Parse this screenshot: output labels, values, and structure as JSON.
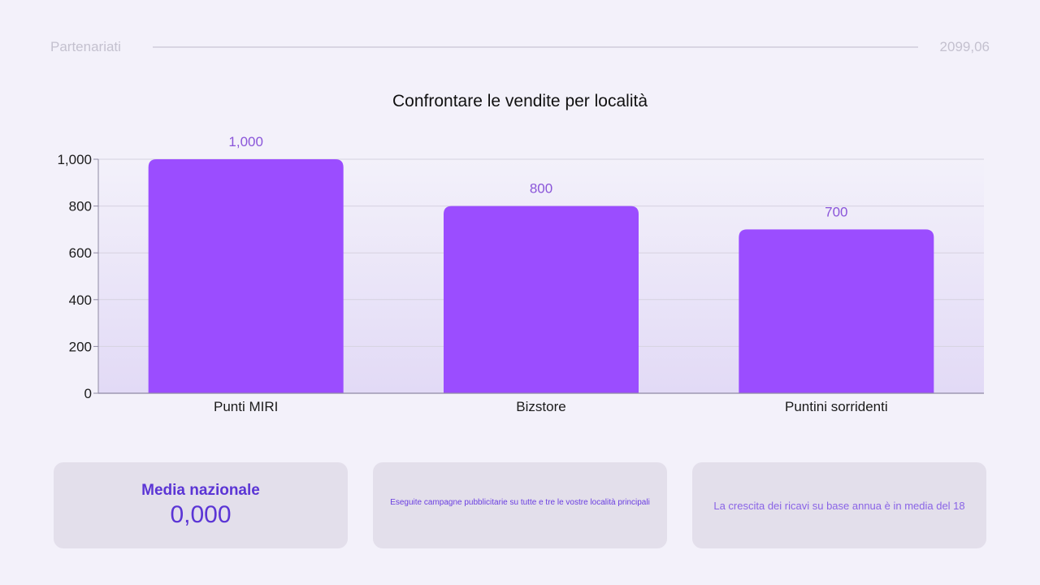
{
  "header": {
    "section": "Partenariati",
    "number": "2099,06"
  },
  "chart_data": {
    "type": "bar",
    "title": "Confrontare le vendite per località",
    "categories": [
      "Punti MIRI",
      "Bizstore",
      "Puntini sorridenti"
    ],
    "values": [
      1000,
      800,
      700
    ],
    "value_labels": [
      "1,000",
      "800",
      "700"
    ],
    "yticks": [
      0,
      200,
      400,
      600,
      800,
      1000
    ],
    "ytick_labels": [
      "0",
      "200",
      "400",
      "600",
      "800",
      "1,000"
    ],
    "ylim": [
      0,
      1000
    ],
    "xlabel": "",
    "ylabel": "",
    "grid": true,
    "bar_color": "#9b4dff"
  },
  "cards": {
    "average_title": "Media nazionale",
    "average_value": "0,000",
    "campaign_text": "Eseguite campagne pubblicitarie su tutte e tre le vostre località principali",
    "growth_text": "La crescita dei ricavi su base annua è in media del 18"
  }
}
